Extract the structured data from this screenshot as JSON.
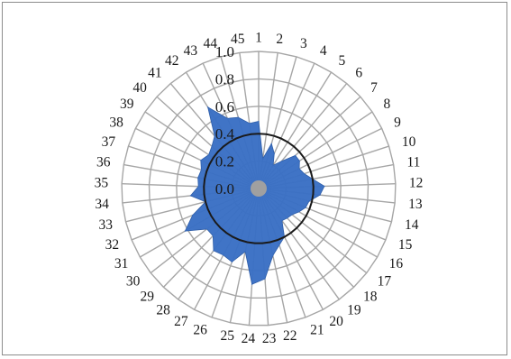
{
  "chart_data": {
    "type": "radar",
    "categories": [
      "1",
      "2",
      "3",
      "4",
      "5",
      "6",
      "7",
      "8",
      "9",
      "10",
      "11",
      "12",
      "13",
      "14",
      "15",
      "16",
      "17",
      "18",
      "19",
      "20",
      "21",
      "22",
      "23",
      "24",
      "25",
      "26",
      "27",
      "28",
      "29",
      "30",
      "31",
      "32",
      "33",
      "34",
      "35",
      "36",
      "37",
      "38",
      "39",
      "40",
      "41",
      "42",
      "43",
      "44",
      "45"
    ],
    "series": [
      {
        "values": [
          0.49,
          0.22,
          0.34,
          0.28,
          0.2,
          0.26,
          0.36,
          0.36,
          0.33,
          0.35,
          0.4,
          0.48,
          0.45,
          0.38,
          0.37,
          0.34,
          0.31,
          0.3,
          0.29,
          0.4,
          0.44,
          0.5,
          0.66,
          0.7,
          0.47,
          0.57,
          0.55,
          0.56,
          0.48,
          0.48,
          0.62,
          0.52,
          0.4,
          0.5,
          0.44,
          0.45,
          0.44,
          0.47,
          0.44,
          0.46,
          0.5,
          0.7,
          0.56,
          0.54,
          0.48
        ],
        "color": "#3a6fc4"
      },
      {
        "values": [
          0.4,
          0.4,
          0.4,
          0.4,
          0.4,
          0.4,
          0.4,
          0.4,
          0.4,
          0.4,
          0.4,
          0.4,
          0.4,
          0.4,
          0.4,
          0.4,
          0.4,
          0.4,
          0.4,
          0.4,
          0.4,
          0.4,
          0.4,
          0.4,
          0.4,
          0.4,
          0.4,
          0.4,
          0.4,
          0.4,
          0.4,
          0.4,
          0.4,
          0.4,
          0.4,
          0.4,
          0.4,
          0.4,
          0.4,
          0.4,
          0.4,
          0.4,
          0.4,
          0.4,
          0.4
        ],
        "color": "#1a1a1a"
      }
    ],
    "rlim": [
      0,
      1.0
    ],
    "ticks": [
      "0.0",
      "0.2",
      "0.4",
      "0.6",
      "0.8",
      "1.0"
    ],
    "tick_values": [
      0,
      0.2,
      0.4,
      0.6,
      0.8,
      1.0
    ],
    "grid": true,
    "legend": "none"
  },
  "colors": {
    "grid": "#a6a6a6",
    "fill": "#3a6fc4",
    "reference": "#1a1a1a"
  }
}
